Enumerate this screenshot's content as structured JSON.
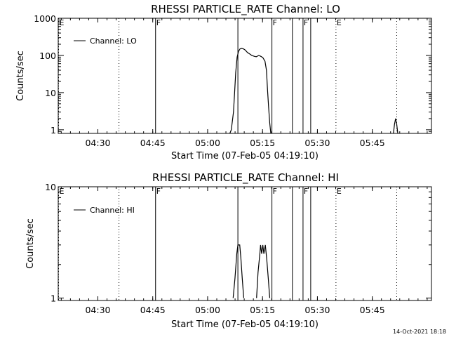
{
  "footer": {
    "timestamp": "14-Oct-2021 18:18"
  },
  "chart_data": [
    {
      "type": "line",
      "title": "RHESSI PARTICLE_RATE Channel: LO",
      "xlabel": "Start Time (07-Feb-05 04:19:10)",
      "ylabel": "Counts/sec",
      "yscale": "log",
      "xlim_min_after_start": [
        0,
        102
      ],
      "ylim": [
        0.8,
        1000
      ],
      "x_ticks": [
        {
          "t": 10.83,
          "label": "04:30"
        },
        {
          "t": 25.83,
          "label": "04:45"
        },
        {
          "t": 40.83,
          "label": "05:00"
        },
        {
          "t": 55.83,
          "label": "05:15"
        },
        {
          "t": 70.83,
          "label": "05:30"
        },
        {
          "t": 85.83,
          "label": "05:45"
        }
      ],
      "y_ticks": [
        {
          "v": 1,
          "label": "1"
        },
        {
          "v": 10,
          "label": "10"
        },
        {
          "v": 100,
          "label": "100"
        },
        {
          "v": 1000,
          "label": "1000"
        }
      ],
      "legend": {
        "label": "Channel: LO",
        "position": "top-left"
      },
      "markers": [
        {
          "t": 0.1,
          "style": "dotted",
          "label": "E"
        },
        {
          "t": 16.6,
          "style": "dotted",
          "label": ""
        },
        {
          "t": 26.6,
          "style": "solid",
          "label": "F"
        },
        {
          "t": 49.1,
          "style": "solid",
          "label": ""
        },
        {
          "t": 58.4,
          "style": "solid",
          "label": "F"
        },
        {
          "t": 64.0,
          "style": "solid",
          "label": ""
        },
        {
          "t": 66.9,
          "style": "solid",
          "label": "F"
        },
        {
          "t": 69.0,
          "style": "solid",
          "label": ""
        },
        {
          "t": 75.9,
          "style": "dotted",
          "label": "E"
        },
        {
          "t": 92.5,
          "style": "dotted",
          "label": ""
        }
      ],
      "series": [
        {
          "points": [
            [
              46.9,
              0.8
            ],
            [
              47.3,
              1.0
            ],
            [
              47.9,
              3.0
            ],
            [
              48.2,
              10
            ],
            [
              48.5,
              35
            ],
            [
              48.9,
              90
            ],
            [
              49.3,
              130
            ],
            [
              49.7,
              150
            ],
            [
              50.1,
              155
            ],
            [
              50.6,
              150
            ],
            [
              51.1,
              140
            ],
            [
              51.7,
              120
            ],
            [
              52.3,
              110
            ],
            [
              52.9,
              100
            ],
            [
              53.5,
              95
            ],
            [
              54.1,
              92
            ],
            [
              54.8,
              100
            ],
            [
              55.3,
              95
            ],
            [
              55.9,
              88
            ],
            [
              56.5,
              70
            ],
            [
              56.9,
              40
            ],
            [
              57.2,
              12
            ],
            [
              57.5,
              4
            ],
            [
              57.8,
              1.5
            ],
            [
              58.1,
              0.8
            ]
          ]
        },
        {
          "points": [
            [
              91.6,
              0.8
            ],
            [
              91.9,
              1.4
            ],
            [
              92.2,
              2.0
            ],
            [
              92.5,
              1.4
            ],
            [
              92.8,
              0.8
            ]
          ]
        }
      ]
    },
    {
      "type": "line",
      "title": "RHESSI PARTICLE_RATE Channel: HI",
      "xlabel": "Start Time (07-Feb-05 04:19:10)",
      "ylabel": "Counts/sec",
      "yscale": "log",
      "xlim_min_after_start": [
        0,
        102
      ],
      "ylim": [
        0.95,
        10
      ],
      "x_ticks": [
        {
          "t": 10.83,
          "label": "04:30"
        },
        {
          "t": 25.83,
          "label": "04:45"
        },
        {
          "t": 40.83,
          "label": "05:00"
        },
        {
          "t": 55.83,
          "label": "05:15"
        },
        {
          "t": 70.83,
          "label": "05:30"
        },
        {
          "t": 85.83,
          "label": "05:45"
        }
      ],
      "y_ticks": [
        {
          "v": 1,
          "label": "1"
        },
        {
          "v": 10,
          "label": "10"
        }
      ],
      "legend": {
        "label": "Channel: HI",
        "position": "top-left"
      },
      "markers": [
        {
          "t": 0.1,
          "style": "dotted",
          "label": "E"
        },
        {
          "t": 16.6,
          "style": "dotted",
          "label": ""
        },
        {
          "t": 26.6,
          "style": "solid",
          "label": "F"
        },
        {
          "t": 49.1,
          "style": "solid",
          "label": ""
        },
        {
          "t": 58.4,
          "style": "solid",
          "label": "F"
        },
        {
          "t": 64.0,
          "style": "solid",
          "label": ""
        },
        {
          "t": 66.9,
          "style": "solid",
          "label": "F"
        },
        {
          "t": 69.0,
          "style": "solid",
          "label": ""
        },
        {
          "t": 75.9,
          "style": "dotted",
          "label": "E"
        },
        {
          "t": 92.5,
          "style": "dotted",
          "label": ""
        }
      ],
      "series": [
        {
          "points": [
            [
              47.8,
              1.0
            ],
            [
              48.3,
              1.5
            ],
            [
              48.8,
              2.5
            ],
            [
              49.1,
              3.0
            ],
            [
              49.6,
              3.0
            ],
            [
              49.9,
              2.3
            ],
            [
              50.3,
              1.5
            ],
            [
              50.7,
              1.0
            ]
          ]
        },
        {
          "points": [
            [
              54.2,
              1.0
            ],
            [
              54.6,
              1.7
            ],
            [
              55.1,
              2.5
            ],
            [
              55.3,
              3.0
            ],
            [
              55.6,
              2.5
            ],
            [
              55.9,
              3.0
            ],
            [
              56.2,
              2.5
            ],
            [
              56.6,
              3.0
            ],
            [
              57.0,
              2.2
            ],
            [
              57.4,
              1.5
            ],
            [
              57.8,
              1.0
            ]
          ]
        }
      ]
    }
  ]
}
